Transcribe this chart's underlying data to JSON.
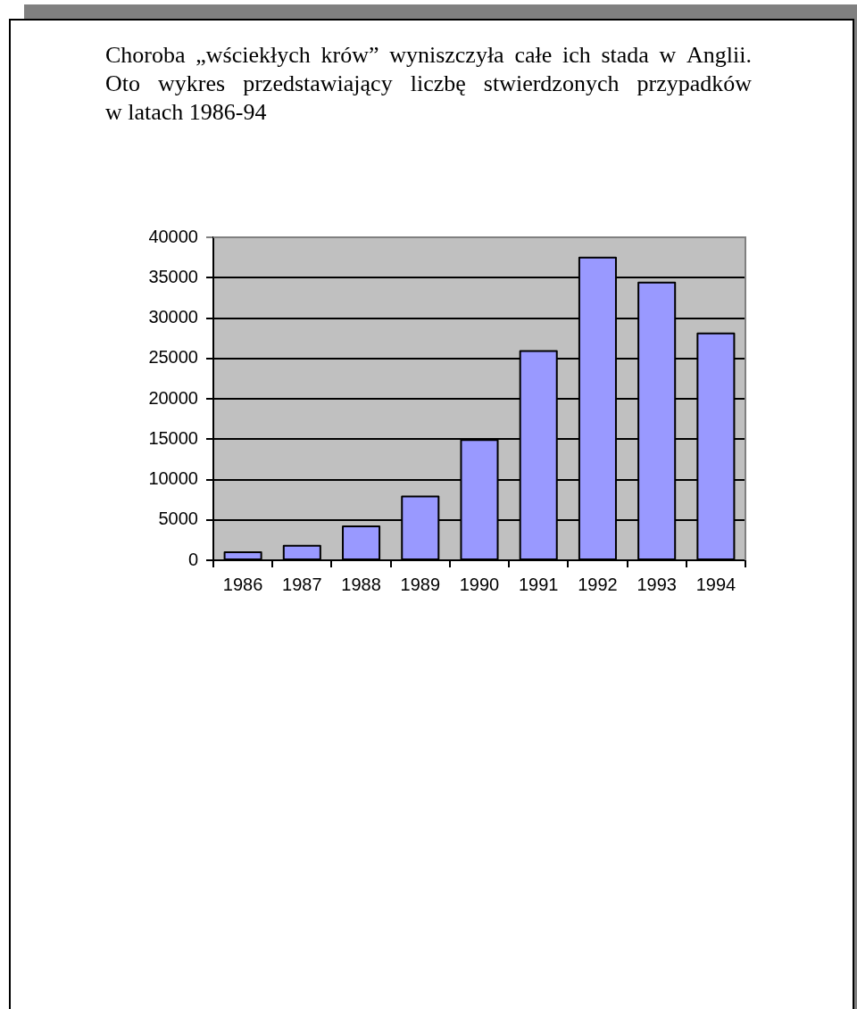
{
  "chart_data": {
    "type": "bar",
    "title": "Choroba „wściekłych krów” wyniszczyła całe ich stada w Anglii. Oto wykres przedstawiający liczbę stwierdzonych przypadków w latach 1986-94",
    "categories": [
      "1986",
      "1987",
      "1988",
      "1989",
      "1990",
      "1991",
      "1992",
      "1993",
      "1994"
    ],
    "values": [
      1000,
      1800,
      4200,
      7900,
      14900,
      25900,
      37500,
      34400,
      28100
    ],
    "color": "#9999ff",
    "ylim": [
      0,
      40000
    ],
    "yticks": [
      0,
      5000,
      10000,
      15000,
      20000,
      25000,
      30000,
      35000,
      40000
    ],
    "grid": "y"
  }
}
